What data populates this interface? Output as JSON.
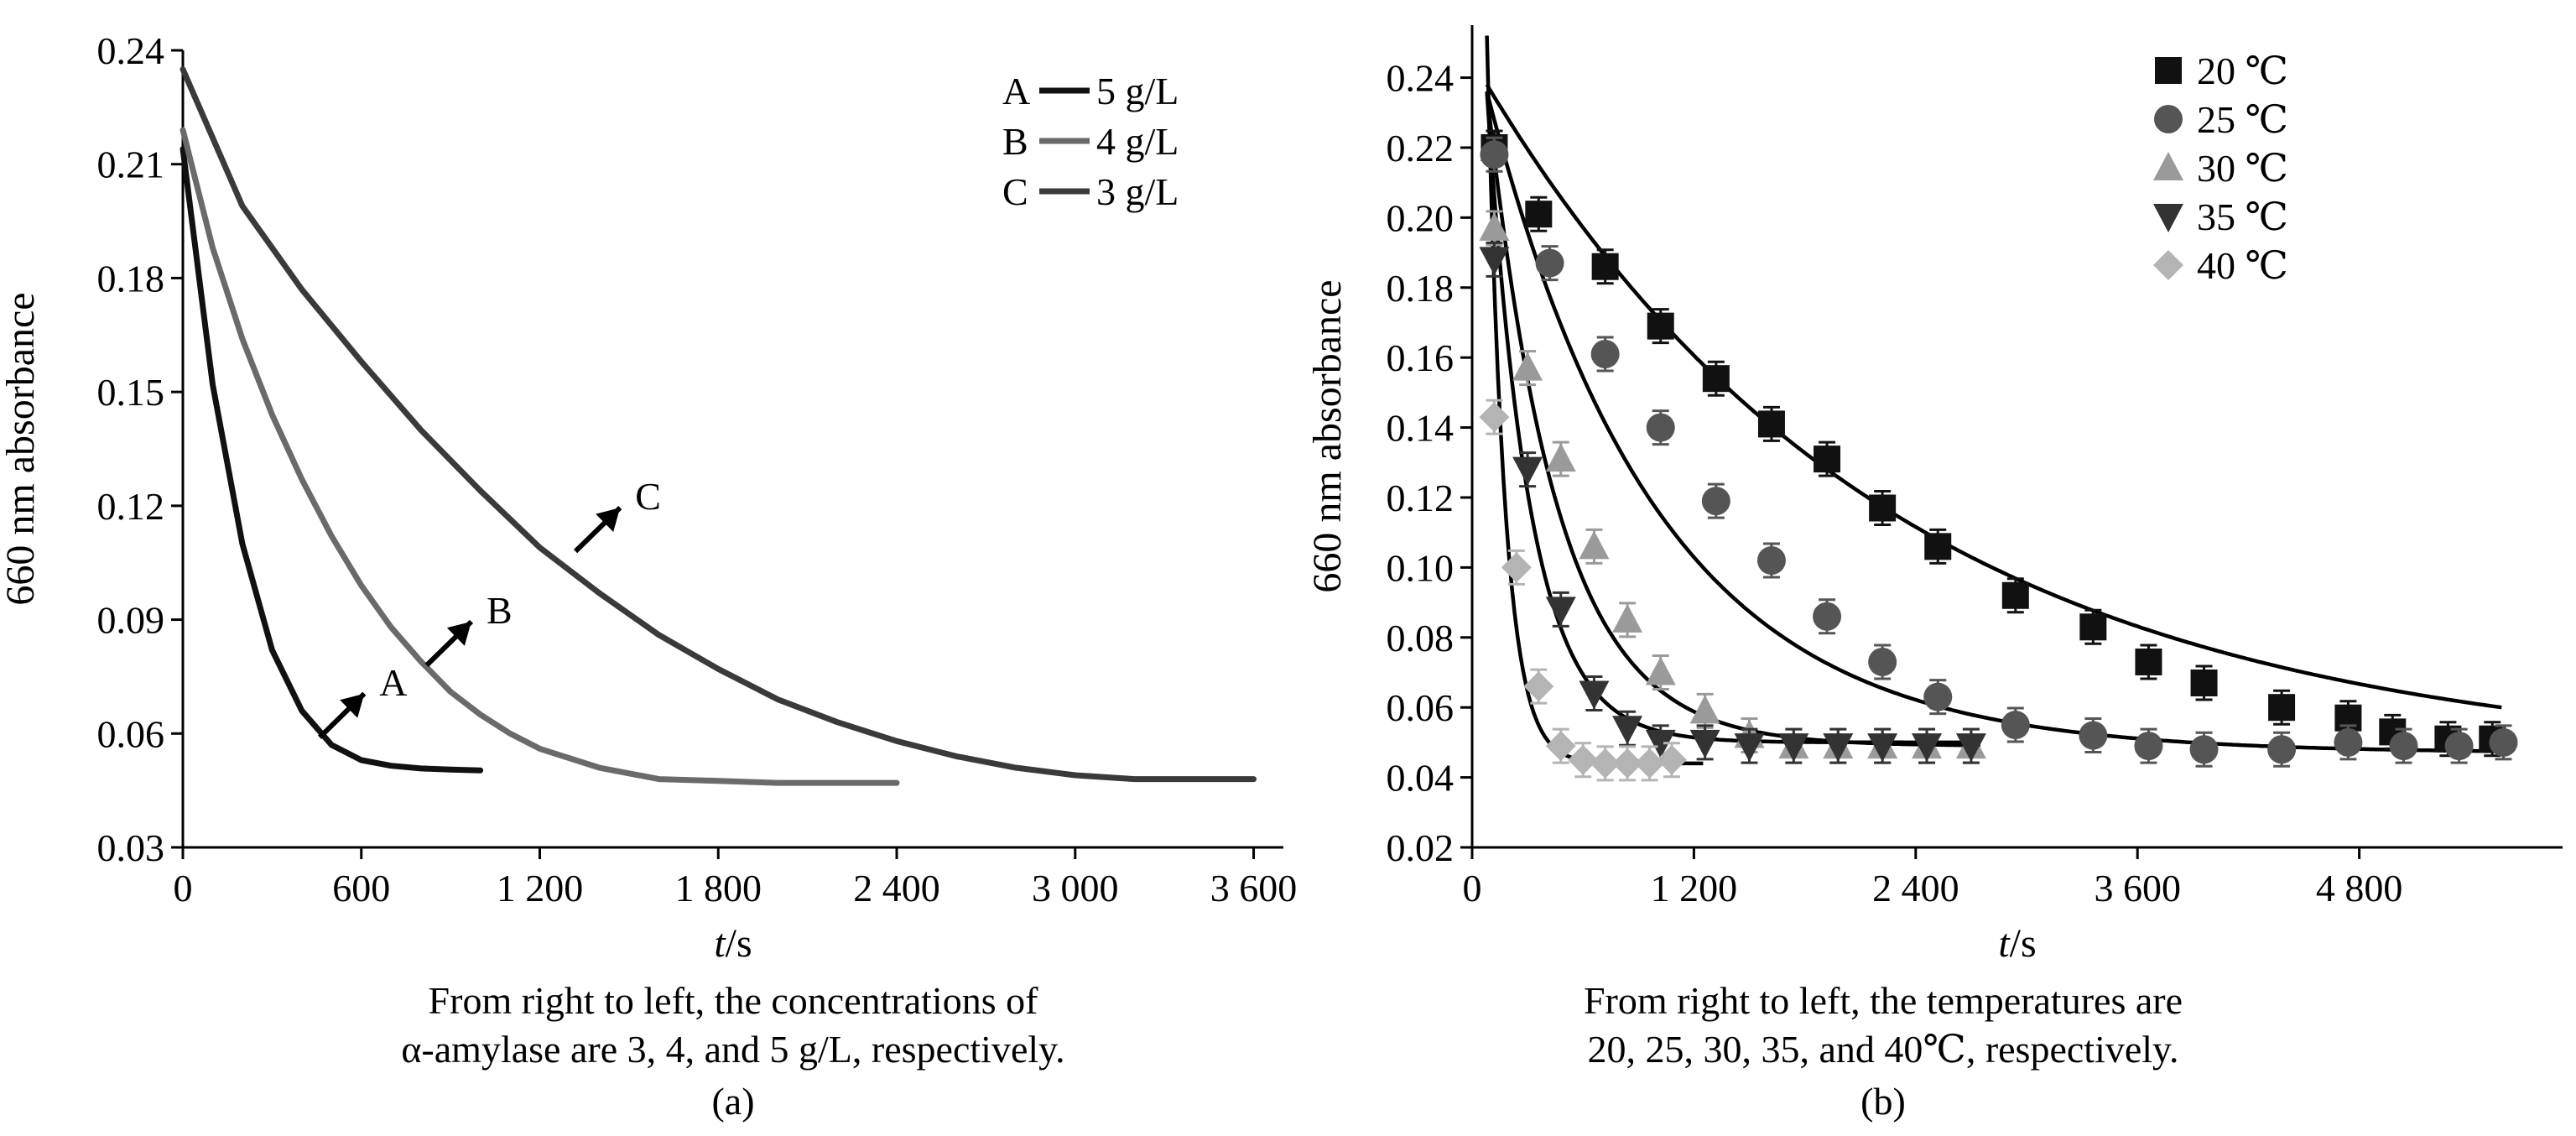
{
  "chart_data": [
    {
      "type": "line",
      "panel": "(a)",
      "xlabel_italic": "t",
      "xlabel_unit": "/s",
      "ylabel": "660 nm absorbance",
      "xlim": [
        0,
        3700
      ],
      "ylim": [
        0.03,
        0.24
      ],
      "xticks": [
        0,
        600,
        1200,
        1800,
        2400,
        3000,
        3600
      ],
      "xtick_labels": [
        "0",
        "600",
        "1 200",
        "1 800",
        "2 400",
        "3 000",
        "3 600"
      ],
      "yticks": [
        0.03,
        0.06,
        0.09,
        0.12,
        0.15,
        0.18,
        0.21,
        0.24
      ],
      "ytick_labels": [
        "0.03",
        "0.06",
        "0.09",
        "0.12",
        "0.15",
        "0.18",
        "0.21",
        "0.24"
      ],
      "legend_position": "top-right",
      "series": [
        {
          "name": "A",
          "legend_label": "5 g/L",
          "color": "#111111",
          "x": [
            0,
            100,
            200,
            300,
            400,
            500,
            600,
            700,
            800,
            900,
            1000
          ],
          "y": [
            0.214,
            0.152,
            0.11,
            0.082,
            0.066,
            0.057,
            0.053,
            0.0515,
            0.0508,
            0.0505,
            0.0503
          ]
        },
        {
          "name": "B",
          "legend_label": "4 g/L",
          "color": "#6a6a6a",
          "x": [
            0,
            100,
            200,
            300,
            400,
            500,
            600,
            700,
            800,
            900,
            1000,
            1100,
            1200,
            1400,
            1600,
            1800,
            2000,
            2200,
            2400
          ],
          "y": [
            0.219,
            0.188,
            0.164,
            0.144,
            0.127,
            0.112,
            0.099,
            0.088,
            0.079,
            0.071,
            0.065,
            0.06,
            0.056,
            0.051,
            0.048,
            0.0475,
            0.047,
            0.047,
            0.047
          ]
        },
        {
          "name": "C",
          "legend_label": "3 g/L",
          "color": "#3a3a3a",
          "x": [
            0,
            200,
            400,
            600,
            800,
            1000,
            1200,
            1400,
            1600,
            1800,
            2000,
            2200,
            2400,
            2600,
            2800,
            3000,
            3200,
            3400,
            3600
          ],
          "y": [
            0.235,
            0.199,
            0.177,
            0.158,
            0.14,
            0.124,
            0.109,
            0.097,
            0.086,
            0.077,
            0.069,
            0.063,
            0.058,
            0.054,
            0.051,
            0.049,
            0.048,
            0.048,
            0.048
          ]
        }
      ],
      "annotations": [
        {
          "text": "A",
          "x": 520,
          "y": 0.066
        },
        {
          "text": "B",
          "x": 880,
          "y": 0.085
        },
        {
          "text": "C",
          "x": 1380,
          "y": 0.115
        }
      ],
      "caption_lines": [
        "From right to left, the concentrations of",
        "α-amylase are 3, 4, and 5 g/L, respectively."
      ]
    },
    {
      "type": "scatter",
      "panel": "(b)",
      "xlabel_italic": "t",
      "xlabel_unit": "/s",
      "ylabel": "660 nm absorbance",
      "xlim": [
        0,
        5900
      ],
      "ylim": [
        0.02,
        0.255
      ],
      "xticks": [
        0,
        1200,
        2400,
        3600,
        4800
      ],
      "xtick_labels": [
        "0",
        "1 200",
        "2 400",
        "3 600",
        "4 800"
      ],
      "yticks": [
        0.02,
        0.04,
        0.06,
        0.08,
        0.1,
        0.12,
        0.14,
        0.16,
        0.18,
        0.2,
        0.22,
        0.24
      ],
      "ytick_labels": [
        "0.02",
        "0.04",
        "0.06",
        "0.08",
        "0.10",
        "0.12",
        "0.14",
        "0.16",
        "0.18",
        "0.20",
        "0.22",
        "0.24"
      ],
      "legend_position": "top-center",
      "series": [
        {
          "name": "20 ℃",
          "marker": "square",
          "color": "#111111",
          "x": [
            120,
            360,
            720,
            1020,
            1320,
            1620,
            1920,
            2220,
            2520,
            2940,
            3360,
            3660,
            3960,
            4380,
            4740,
            4980,
            5280,
            5520
          ],
          "y": [
            0.22,
            0.201,
            0.186,
            0.169,
            0.154,
            0.141,
            0.131,
            0.117,
            0.106,
            0.092,
            0.083,
            0.073,
            0.067,
            0.06,
            0.057,
            0.053,
            0.051,
            0.051
          ],
          "fit_y0": 0.238,
          "fit_tau": 2200,
          "fit_c": 0.044
        },
        {
          "name": "25 ℃",
          "marker": "circle",
          "color": "#555555",
          "x": [
            120,
            420,
            720,
            1020,
            1320,
            1620,
            1920,
            2220,
            2520,
            2940,
            3360,
            3660,
            3960,
            4380,
            4740,
            5040,
            5340,
            5580
          ],
          "y": [
            0.218,
            0.187,
            0.161,
            0.14,
            0.119,
            0.102,
            0.086,
            0.073,
            0.063,
            0.055,
            0.052,
            0.049,
            0.048,
            0.048,
            0.05,
            0.049,
            0.049,
            0.05
          ],
          "fit_y0": 0.236,
          "fit_tau": 920,
          "fit_c": 0.047
        },
        {
          "name": "30 ℃",
          "marker": "triangle-up",
          "color": "#9a9a9a",
          "x": [
            120,
            300,
            480,
            660,
            840,
            1020,
            1260,
            1500,
            1740,
            1980,
            2220,
            2460,
            2700
          ],
          "y": [
            0.197,
            0.157,
            0.131,
            0.106,
            0.085,
            0.07,
            0.059,
            0.052,
            0.049,
            0.049,
            0.049,
            0.049,
            0.049
          ],
          "fit_y0": 0.236,
          "fit_tau": 380,
          "fit_c": 0.049
        },
        {
          "name": "35 ℃",
          "marker": "triangle-down",
          "color": "#333333",
          "x": [
            120,
            300,
            480,
            660,
            840,
            1020,
            1260,
            1500,
            1740,
            1980,
            2220,
            2460,
            2700
          ],
          "y": [
            0.188,
            0.128,
            0.088,
            0.064,
            0.054,
            0.05,
            0.05,
            0.049,
            0.049,
            0.049,
            0.049,
            0.049,
            0.049
          ],
          "fit_y0": 0.236,
          "fit_tau": 230,
          "fit_c": 0.05
        },
        {
          "name": "40 ℃",
          "marker": "diamond",
          "color": "#b4b4b4",
          "x": [
            120,
            240,
            360,
            480,
            600,
            720,
            840,
            960,
            1080
          ],
          "y": [
            0.143,
            0.1,
            0.066,
            0.049,
            0.045,
            0.044,
            0.044,
            0.044,
            0.045
          ],
          "fit_y0": 0.252,
          "fit_tau": 95,
          "fit_c": 0.044,
          "fit_xmax": 1260
        }
      ],
      "caption_lines": [
        "From right to left, the temperatures are",
        "20, 25, 30, 35, and 40℃, respectively."
      ]
    }
  ]
}
